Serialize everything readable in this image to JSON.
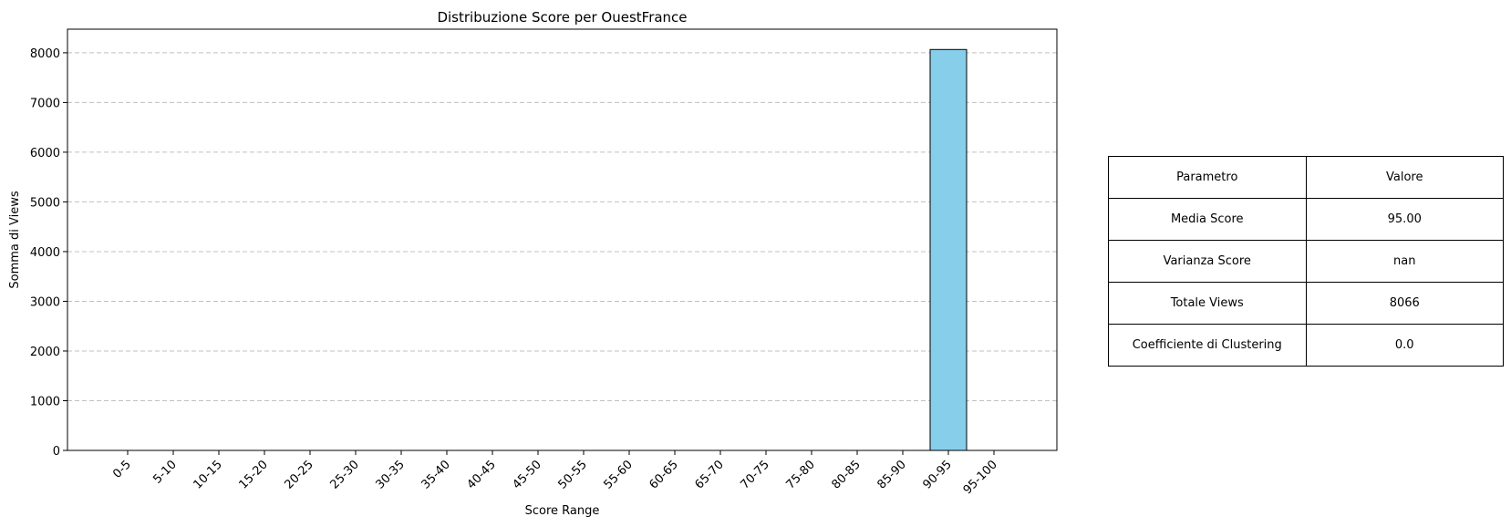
{
  "chart_data": {
    "type": "bar",
    "title": "Distribuzione Score per OuestFrance",
    "xlabel": "Score Range",
    "ylabel": "Somma di Views",
    "categories": [
      "0-5",
      "5-10",
      "10-15",
      "15-20",
      "20-25",
      "25-30",
      "30-35",
      "35-40",
      "40-45",
      "45-50",
      "50-55",
      "55-60",
      "60-65",
      "65-70",
      "70-75",
      "75-80",
      "80-85",
      "85-90",
      "90-95",
      "95-100"
    ],
    "values": [
      0,
      0,
      0,
      0,
      0,
      0,
      0,
      0,
      0,
      0,
      0,
      0,
      0,
      0,
      0,
      0,
      0,
      0,
      8066,
      0
    ],
    "ylim": [
      0,
      8475
    ],
    "yticks": [
      0,
      1000,
      2000,
      3000,
      4000,
      5000,
      6000,
      7000,
      8000
    ],
    "grid": "y dashed",
    "bar_color": "#87ceeb",
    "edge_color": "#000000",
    "grid_color": "#c0c0c0"
  },
  "table": {
    "header": [
      "Parametro",
      "Valore"
    ],
    "rows": [
      [
        "Media Score",
        "95.00"
      ],
      [
        "Varianza Score",
        "nan"
      ],
      [
        "Totale Views",
        "8066"
      ],
      [
        "Coefficiente di Clustering",
        "0.0"
      ]
    ]
  }
}
